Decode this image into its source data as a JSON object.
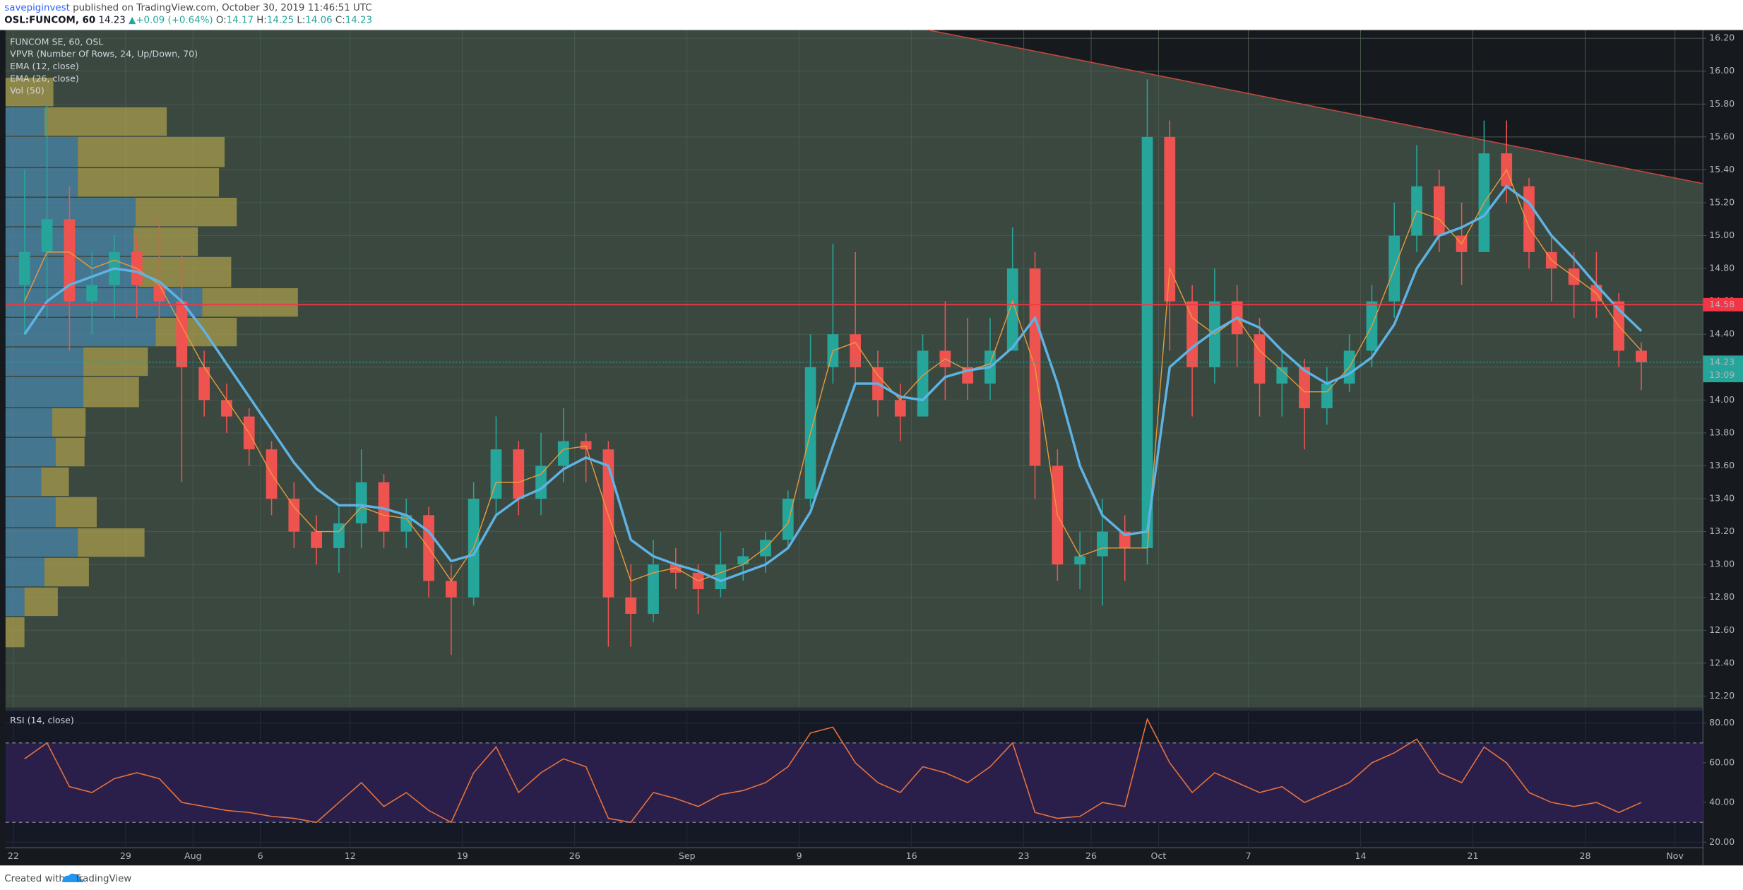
{
  "header": {
    "publisher": "savepiginvest",
    "published": "published on TradingView.com, October 30, 2019 11:46:51 UTC",
    "symbol": "OSL:FUNCOM, 60",
    "last": "14.23",
    "arrow": "▲",
    "change": "+0.09 (+0.64%)",
    "ohlc": [
      {
        "label": "O:",
        "value": "14.17"
      },
      {
        "label": "H:",
        "value": "14.25"
      },
      {
        "label": "L:",
        "value": "14.06"
      },
      {
        "label": "C:",
        "value": "14.23"
      }
    ]
  },
  "chart_data": [
    {
      "type": "candlestick",
      "title": "FUNCOM SE, 60, OSL",
      "studies": [
        "VPVR (Number Of Rows, 24, Up/Down, 70)",
        "Vol (50)"
      ],
      "categories": [
        "22",
        null,
        null,
        null,
        null,
        "29",
        null,
        null,
        "Aug",
        null,
        null,
        "6",
        null,
        null,
        null,
        "12",
        null,
        null,
        null,
        null,
        "19",
        null,
        null,
        null,
        null,
        "26",
        null,
        null,
        null,
        null,
        "Sep",
        null,
        null,
        null,
        null,
        "9",
        null,
        null,
        null,
        null,
        "16",
        null,
        null,
        null,
        null,
        "23",
        null,
        null,
        "26",
        null,
        null,
        "Oct",
        null,
        null,
        null,
        "7",
        null,
        null,
        null,
        null,
        "14",
        null,
        null,
        null,
        null,
        "21",
        null,
        null,
        null,
        null,
        "28",
        null,
        null,
        null,
        "Nov"
      ],
      "open": [
        14.7,
        14.9,
        15.1,
        14.6,
        14.7,
        14.9,
        14.7,
        14.6,
        14.2,
        14.0,
        13.9,
        13.7,
        13.4,
        13.2,
        13.1,
        13.25,
        13.5,
        13.2,
        13.3,
        12.9,
        12.8,
        13.4,
        13.7,
        13.4,
        13.6,
        13.75,
        13.7,
        12.8,
        12.7,
        13.0,
        12.95,
        12.85,
        13.0,
        13.05,
        13.15,
        13.4,
        14.2,
        14.4,
        14.2,
        14.0,
        13.9,
        14.3,
        14.2,
        14.1,
        14.3,
        14.8,
        13.6,
        13.0,
        13.05,
        13.2,
        13.1,
        15.6,
        14.6,
        14.2,
        14.6,
        14.4,
        14.1,
        14.2,
        13.95,
        14.1,
        14.3,
        14.6,
        15.0,
        15.3,
        15.0,
        14.9,
        15.5,
        15.3,
        14.9,
        14.8,
        14.7,
        14.6,
        14.3,
        null,
        null
      ],
      "high": [
        15.4,
        15.8,
        15.3,
        14.9,
        15.0,
        15.0,
        15.1,
        14.9,
        14.3,
        14.1,
        13.95,
        13.75,
        13.5,
        13.3,
        13.35,
        13.7,
        13.55,
        13.4,
        13.35,
        13.0,
        13.5,
        13.9,
        13.75,
        13.8,
        13.95,
        13.8,
        13.75,
        13.0,
        13.15,
        13.1,
        13.0,
        13.2,
        13.1,
        13.2,
        13.45,
        14.4,
        14.95,
        14.9,
        14.3,
        14.1,
        14.4,
        14.6,
        14.5,
        14.5,
        15.05,
        14.9,
        13.7,
        13.2,
        13.4,
        13.3,
        15.95,
        15.7,
        14.7,
        14.8,
        14.7,
        14.5,
        14.3,
        14.25,
        14.2,
        14.4,
        14.7,
        15.2,
        15.55,
        15.4,
        15.2,
        15.7,
        15.7,
        15.35,
        15.0,
        14.9,
        14.9,
        14.65,
        14.35,
        null,
        null
      ],
      "low": [
        14.4,
        14.5,
        14.3,
        14.4,
        14.5,
        14.5,
        14.5,
        13.5,
        13.9,
        13.8,
        13.6,
        13.3,
        13.1,
        13.0,
        12.95,
        13.1,
        13.1,
        13.1,
        12.8,
        12.45,
        12.75,
        13.3,
        13.3,
        13.3,
        13.5,
        13.5,
        12.5,
        12.5,
        12.65,
        12.85,
        12.7,
        12.8,
        12.9,
        12.95,
        13.1,
        13.35,
        14.1,
        14.1,
        13.9,
        13.75,
        13.9,
        14.0,
        14.0,
        14.0,
        14.3,
        13.4,
        12.9,
        12.85,
        12.75,
        12.9,
        13.0,
        14.3,
        13.9,
        14.1,
        14.2,
        13.9,
        13.9,
        13.7,
        13.85,
        14.05,
        14.2,
        14.5,
        14.9,
        14.9,
        14.7,
        14.9,
        15.2,
        14.8,
        14.6,
        14.5,
        14.5,
        14.2,
        14.06,
        null,
        null
      ],
      "close": [
        14.9,
        15.1,
        14.6,
        14.7,
        14.9,
        14.7,
        14.6,
        14.2,
        14.0,
        13.9,
        13.7,
        13.4,
        13.2,
        13.1,
        13.25,
        13.5,
        13.2,
        13.3,
        12.9,
        12.8,
        13.4,
        13.7,
        13.4,
        13.6,
        13.75,
        13.7,
        12.8,
        12.7,
        13.0,
        12.95,
        12.85,
        13.0,
        13.05,
        13.15,
        13.4,
        14.2,
        14.4,
        14.2,
        14.0,
        13.9,
        14.3,
        14.2,
        14.1,
        14.3,
        14.8,
        13.6,
        13.0,
        13.05,
        13.2,
        13.1,
        15.6,
        14.6,
        14.2,
        14.6,
        14.4,
        14.1,
        14.2,
        13.95,
        14.1,
        14.3,
        14.6,
        15.0,
        15.3,
        15.0,
        14.9,
        15.5,
        15.3,
        14.9,
        14.8,
        14.7,
        14.6,
        14.3,
        14.23,
        null,
        null
      ],
      "up_color": "#26a69a",
      "down_color": "#ef5350",
      "series": [
        {
          "name": "EMA (12, close)",
          "color": "#e89a3c",
          "values": [
            14.6,
            14.9,
            14.9,
            14.8,
            14.85,
            14.8,
            14.7,
            14.45,
            14.2,
            14.0,
            13.8,
            13.55,
            13.35,
            13.2,
            13.2,
            13.35,
            13.3,
            13.28,
            13.1,
            12.9,
            13.1,
            13.5,
            13.5,
            13.55,
            13.7,
            13.72,
            13.3,
            12.9,
            12.95,
            12.98,
            12.9,
            12.95,
            13.0,
            13.1,
            13.25,
            13.8,
            14.3,
            14.35,
            14.15,
            14.0,
            14.15,
            14.25,
            14.18,
            14.22,
            14.6,
            14.2,
            13.3,
            13.05,
            13.1,
            13.1,
            13.1,
            14.8,
            14.5,
            14.4,
            14.5,
            14.3,
            14.18,
            14.05,
            14.05,
            14.2,
            14.45,
            14.8,
            15.15,
            15.1,
            14.95,
            15.2,
            15.4,
            15.05,
            14.85,
            14.75,
            14.65,
            14.45,
            14.3,
            null,
            null
          ]
        },
        {
          "name": "EMA (26, close)",
          "color": "#5fb3e4",
          "values": [
            14.4,
            14.6,
            14.7,
            14.75,
            14.8,
            14.78,
            14.72,
            14.6,
            14.42,
            14.22,
            14.02,
            13.82,
            13.62,
            13.46,
            13.36,
            13.36,
            13.34,
            13.3,
            13.2,
            13.02,
            13.06,
            13.3,
            13.4,
            13.46,
            13.58,
            13.65,
            13.6,
            13.15,
            13.05,
            13.0,
            12.96,
            12.9,
            12.95,
            13.0,
            13.1,
            13.32,
            13.72,
            14.1,
            14.1,
            14.02,
            14.0,
            14.14,
            14.18,
            14.2,
            14.32,
            14.5,
            14.1,
            13.6,
            13.3,
            13.18,
            13.2,
            14.2,
            14.32,
            14.42,
            14.5,
            14.44,
            14.3,
            14.18,
            14.1,
            14.16,
            14.26,
            14.46,
            14.8,
            15.0,
            15.05,
            15.12,
            15.3,
            15.2,
            15.0,
            14.86,
            14.7,
            14.55,
            14.42,
            null,
            null
          ]
        }
      ],
      "vpvr": {
        "price_bins": [
          15.96,
          15.78,
          15.6,
          15.41,
          15.23,
          15.05,
          14.87,
          14.68,
          14.5,
          14.32,
          14.14,
          13.95,
          13.77,
          13.59,
          13.41,
          13.22,
          13.04,
          12.86,
          12.68,
          12.49
        ],
        "up": [
          0,
          35,
          65,
          65,
          117,
          115,
          120,
          177,
          135,
          70,
          70,
          42,
          45,
          32,
          45,
          65,
          35,
          17,
          0
        ],
        "down": [
          43,
          110,
          132,
          127,
          91,
          58,
          83,
          86,
          73,
          58,
          50,
          30,
          26,
          25,
          37,
          60,
          40,
          30,
          17
        ],
        "up_color": "#4a86ab",
        "down_color": "#a89c4c"
      },
      "hline": {
        "value": 14.58,
        "label": "14.58",
        "color": "#f23645"
      },
      "last_price": {
        "value": 14.23,
        "label": "14.23",
        "countdown": "13:09",
        "color": "#26a69a"
      },
      "ylim": [
        12.13,
        16.25
      ],
      "yticks": [
        {
          "value": 12.2,
          "label": "12.20"
        },
        {
          "value": 12.4,
          "label": "12.40"
        },
        {
          "value": 12.6,
          "label": "12.60"
        },
        {
          "value": 12.8,
          "label": "12.80"
        },
        {
          "value": 13,
          "label": "13.00"
        },
        {
          "value": 13.2,
          "label": "13.20"
        },
        {
          "value": 13.4,
          "label": "13.40"
        },
        {
          "value": 13.6,
          "label": "13.60"
        },
        {
          "value": 13.8,
          "label": "13.80"
        },
        {
          "value": 14,
          "label": "14.00"
        },
        {
          "value": 14.2,
          "label": "14.20"
        },
        {
          "value": 14.4,
          "label": "14.40"
        },
        {
          "value": 14.6,
          "label": "14.60"
        },
        {
          "value": 14.8,
          "label": "14.80"
        },
        {
          "value": 15,
          "label": "15.00"
        },
        {
          "value": 15.2,
          "label": "15.20"
        },
        {
          "value": 15.4,
          "label": "15.40"
        },
        {
          "value": 15.6,
          "label": "15.60"
        },
        {
          "value": 15.8,
          "label": "15.80"
        },
        {
          "value": 16,
          "label": "16.00"
        },
        {
          "value": 16.2,
          "label": "16.20"
        }
      ],
      "grid": true
    },
    {
      "type": "line",
      "title": "RSI (14, close)",
      "color": "#e8733a",
      "values": [
        62,
        70,
        48,
        45,
        52,
        55,
        52,
        40,
        38,
        36,
        35,
        33,
        32,
        30,
        40,
        50,
        38,
        45,
        36,
        30,
        55,
        68,
        45,
        55,
        62,
        58,
        32,
        30,
        45,
        42,
        38,
        44,
        46,
        50,
        58,
        75,
        78,
        60,
        50,
        45,
        58,
        55,
        50,
        58,
        70,
        35,
        32,
        33,
        40,
        38,
        82,
        60,
        45,
        55,
        50,
        45,
        48,
        40,
        45,
        50,
        60,
        65,
        72,
        55,
        50,
        68,
        60,
        45,
        40,
        38,
        40,
        35,
        40,
        null,
        null
      ],
      "band": [
        30,
        70
      ],
      "band_color": "#2a1f4b",
      "ylim": [
        17.2,
        85.6
      ],
      "yticks": [
        {
          "value": 20,
          "label": "20.00"
        },
        {
          "value": 40,
          "label": "40.00"
        },
        {
          "value": 60,
          "label": "60.00"
        },
        {
          "value": 80,
          "label": "80.00"
        }
      ],
      "grid": true
    }
  ],
  "footer": {
    "created_with": "Created with",
    "brand": "TradingView"
  }
}
